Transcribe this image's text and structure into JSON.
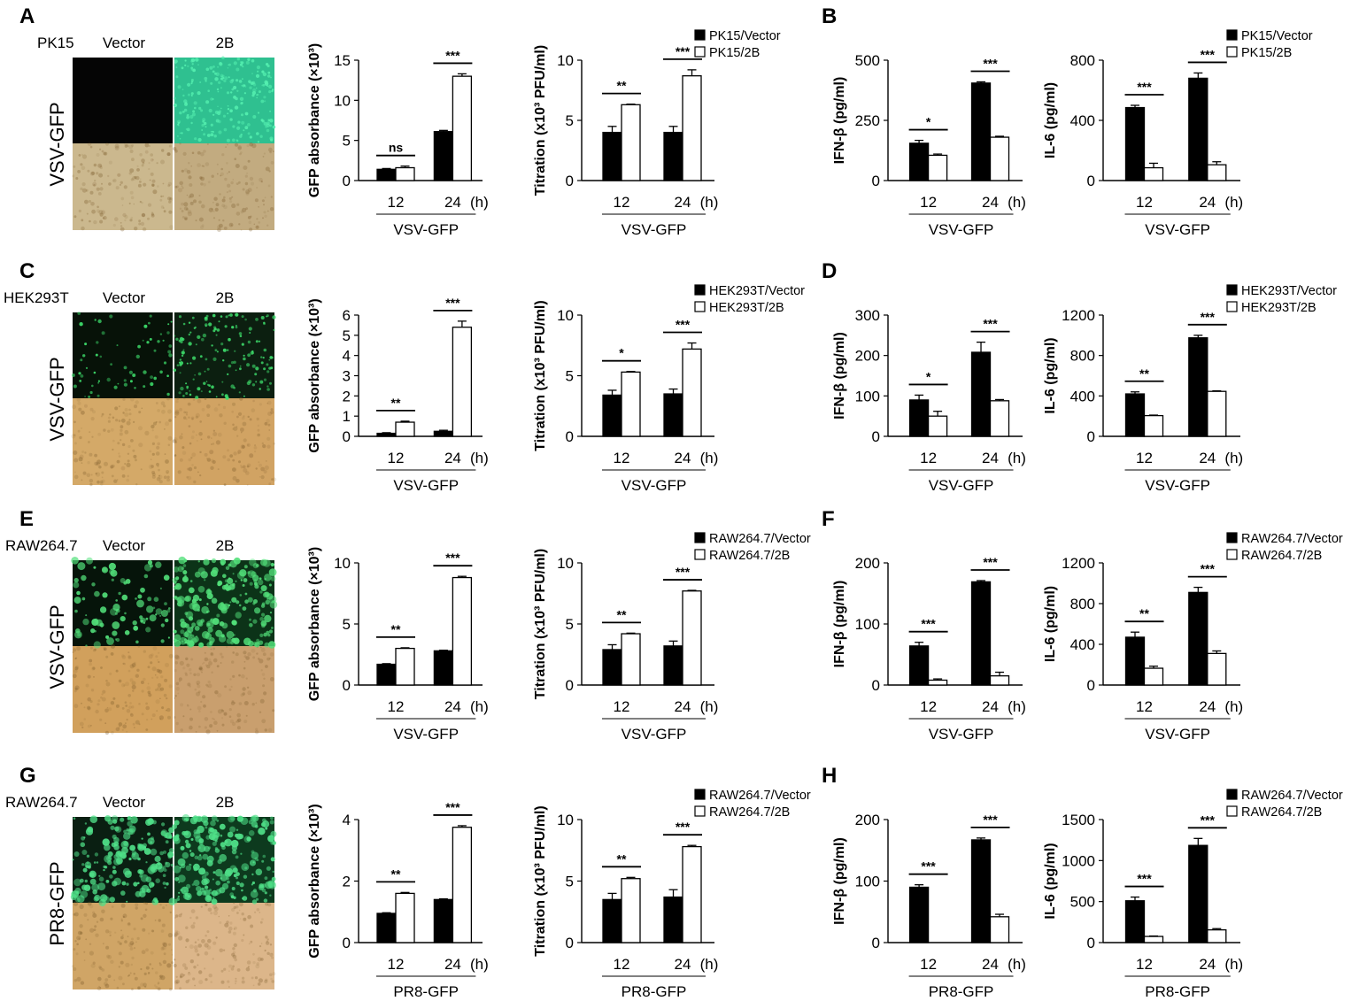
{
  "panel_labels": [
    "A",
    "B",
    "C",
    "D",
    "E",
    "F",
    "G",
    "H"
  ],
  "rows": [
    {
      "cell_line": "PK15",
      "condition_labels": [
        "Vector",
        "2B"
      ],
      "side_label": "VSV-GFP",
      "micro": {
        "top_left": "#050505",
        "top_right": "#2fc090",
        "bottom_left": "#cbb88e",
        "bottom_right": "#c2ab80",
        "spot_color": "#55f0b0",
        "spot_density_left": 0.0,
        "spot_density_right": 0.9
      }
    },
    {
      "cell_line": "HEK293T",
      "condition_labels": [
        "Vector",
        "2B"
      ],
      "side_label": "VSV-GFP",
      "micro": {
        "top_left": "#071208",
        "top_right": "#0c1f10",
        "bottom_left": "#d4a968",
        "bottom_right": "#d1a363",
        "spot_color": "#3ddc6a",
        "spot_density_left": 0.25,
        "spot_density_right": 0.6
      }
    },
    {
      "cell_line": "RAW264.7",
      "condition_labels": [
        "Vector",
        "2B"
      ],
      "side_label": "VSV-GFP",
      "micro": {
        "top_left": "#06140a",
        "top_right": "#0c3318",
        "bottom_left": "#d1a05c",
        "bottom_right": "#c99f6e",
        "spot_color": "#52e07a",
        "spot_density_left": 0.35,
        "spot_density_right": 0.85
      }
    },
    {
      "cell_line": "RAW264.7",
      "condition_labels": [
        "Vector",
        "2B"
      ],
      "side_label": "PR8-GFP",
      "micro": {
        "top_left": "#0a1f12",
        "top_right": "#0d3a1e",
        "bottom_left": "#d0a566",
        "bottom_right": "#dcb68a",
        "spot_color": "#4fe088",
        "spot_density_left": 0.7,
        "spot_density_right": 0.8
      }
    }
  ],
  "chart_data": [
    {
      "id": "A-gfp",
      "type": "bar",
      "ylabel": "GFP absorbance (×10³)",
      "ylim": [
        0,
        15
      ],
      "yticks": [
        0,
        5,
        10,
        15
      ],
      "categories": [
        "12",
        "24"
      ],
      "unit": "(h)",
      "group_label": "VSV-GFP",
      "series": [
        {
          "name": "Vector",
          "fill": "black",
          "values": [
            1.4,
            6.1
          ],
          "errors": [
            0.1,
            0.15
          ]
        },
        {
          "name": "2B",
          "fill": "white",
          "values": [
            1.6,
            13.0
          ],
          "errors": [
            0.2,
            0.3
          ]
        }
      ],
      "significance": [
        "ns",
        "***"
      ]
    },
    {
      "id": "A-titer",
      "type": "bar",
      "ylabel": "Titration (x10³ PFU/ml)",
      "ylim": [
        0,
        10
      ],
      "yticks": [
        0,
        5,
        10
      ],
      "categories": [
        "12",
        "24"
      ],
      "unit": "(h)",
      "group_label": "VSV-GFP",
      "series": [
        {
          "name": "PK15/Vector",
          "fill": "black",
          "values": [
            4.0,
            4.0
          ],
          "errors": [
            0.5,
            0.5
          ]
        },
        {
          "name": "PK15/2B",
          "fill": "white",
          "values": [
            6.3,
            8.7
          ],
          "errors": [
            0.05,
            0.5
          ]
        }
      ],
      "significance": [
        "**",
        "***"
      ],
      "legend": [
        "PK15/Vector",
        "PK15/2B"
      ]
    },
    {
      "id": "B-ifn",
      "type": "bar",
      "ylabel": "IFN-β (pg/ml)",
      "ylim": [
        0,
        500
      ],
      "yticks": [
        0,
        250,
        500
      ],
      "categories": [
        "12",
        "24"
      ],
      "unit": "(h)",
      "group_label": "VSV-GFP",
      "series": [
        {
          "name": "PK15/Vector",
          "fill": "black",
          "values": [
            155,
            405
          ],
          "errors": [
            12,
            5
          ]
        },
        {
          "name": "PK15/2B",
          "fill": "white",
          "values": [
            105,
            180
          ],
          "errors": [
            5,
            4
          ]
        }
      ],
      "significance": [
        "*",
        "***"
      ]
    },
    {
      "id": "B-il6",
      "type": "bar",
      "ylabel": "IL-6 (pg/ml)",
      "ylim": [
        0,
        800
      ],
      "yticks": [
        0,
        400,
        800
      ],
      "categories": [
        "12",
        "24"
      ],
      "unit": "(h)",
      "group_label": "VSV-GFP",
      "series": [
        {
          "name": "PK15/Vector",
          "fill": "black",
          "values": [
            485,
            680
          ],
          "errors": [
            15,
            35
          ]
        },
        {
          "name": "PK15/2B",
          "fill": "white",
          "values": [
            85,
            105
          ],
          "errors": [
            30,
            20
          ]
        }
      ],
      "significance": [
        "***",
        "***"
      ],
      "legend": [
        "PK15/Vector",
        "PK15/2B"
      ]
    },
    {
      "id": "C-gfp",
      "type": "bar",
      "ylabel": "GFP absorbance (×10³)",
      "ylim": [
        0,
        6
      ],
      "yticks": [
        0,
        1,
        2,
        3,
        4,
        5,
        6
      ],
      "categories": [
        "12",
        "24"
      ],
      "unit": "(h)",
      "group_label": "VSV-GFP",
      "series": [
        {
          "name": "Vector",
          "fill": "black",
          "values": [
            0.15,
            0.25
          ],
          "errors": [
            0.03,
            0.05
          ]
        },
        {
          "name": "2B",
          "fill": "white",
          "values": [
            0.7,
            5.4
          ],
          "errors": [
            0.05,
            0.3
          ]
        }
      ],
      "significance": [
        "**",
        "***"
      ]
    },
    {
      "id": "C-titer",
      "type": "bar",
      "ylabel": "Titration (x10³ PFU/ml)",
      "ylim": [
        0,
        10
      ],
      "yticks": [
        0,
        5,
        10
      ],
      "categories": [
        "12",
        "24"
      ],
      "unit": "(h)",
      "group_label": "VSV-GFP",
      "series": [
        {
          "name": "HEK293T/Vector",
          "fill": "black",
          "values": [
            3.4,
            3.5
          ],
          "errors": [
            0.4,
            0.4
          ]
        },
        {
          "name": "HEK293T/2B",
          "fill": "white",
          "values": [
            5.3,
            7.2
          ],
          "errors": [
            0.05,
            0.5
          ]
        }
      ],
      "significance": [
        "*",
        "***"
      ],
      "legend": [
        "HEK293T/Vector",
        "HEK293T/2B"
      ]
    },
    {
      "id": "D-ifn",
      "type": "bar",
      "ylabel": "IFN-β (pg/ml)",
      "ylim": [
        0,
        300
      ],
      "yticks": [
        0,
        100,
        200,
        300
      ],
      "categories": [
        "12",
        "24"
      ],
      "unit": "(h)",
      "group_label": "VSV-GFP",
      "series": [
        {
          "name": "HEK293T/Vector",
          "fill": "black",
          "values": [
            90,
            208
          ],
          "errors": [
            12,
            25
          ]
        },
        {
          "name": "HEK293T/2B",
          "fill": "white",
          "values": [
            50,
            88
          ],
          "errors": [
            12,
            3
          ]
        }
      ],
      "significance": [
        "*",
        "***"
      ]
    },
    {
      "id": "D-il6",
      "type": "bar",
      "ylabel": "IL-6 (pg/ml)",
      "ylim": [
        0,
        1200
      ],
      "yticks": [
        0,
        400,
        800,
        1200
      ],
      "categories": [
        "12",
        "24"
      ],
      "unit": "(h)",
      "group_label": "VSV-GFP",
      "series": [
        {
          "name": "HEK293T/Vector",
          "fill": "black",
          "values": [
            420,
            975
          ],
          "errors": [
            20,
            25
          ]
        },
        {
          "name": "HEK293T/2B",
          "fill": "white",
          "values": [
            205,
            445
          ],
          "errors": [
            5,
            5
          ]
        }
      ],
      "significance": [
        "**",
        "***"
      ],
      "legend": [
        "HEK293T/Vector",
        "HEK293T/2B"
      ]
    },
    {
      "id": "E-gfp",
      "type": "bar",
      "ylabel": "GFP absorbance (×10³)",
      "ylim": [
        0,
        10
      ],
      "yticks": [
        0,
        5,
        10
      ],
      "categories": [
        "12",
        "24"
      ],
      "unit": "(h)",
      "group_label": "VSV-GFP",
      "series": [
        {
          "name": "Vector",
          "fill": "black",
          "values": [
            1.7,
            2.8
          ],
          "errors": [
            0.05,
            0.05
          ]
        },
        {
          "name": "2B",
          "fill": "white",
          "values": [
            3.0,
            8.8
          ],
          "errors": [
            0.05,
            0.1
          ]
        }
      ],
      "significance": [
        "**",
        "***"
      ]
    },
    {
      "id": "E-titer",
      "type": "bar",
      "ylabel": "Titration (x10³ PFU/ml)",
      "ylim": [
        0,
        10
      ],
      "yticks": [
        0,
        5,
        10
      ],
      "categories": [
        "12",
        "24"
      ],
      "unit": "(h)",
      "group_label": "VSV-GFP",
      "series": [
        {
          "name": "RAW264.7/Vector",
          "fill": "black",
          "values": [
            2.9,
            3.2
          ],
          "errors": [
            0.4,
            0.4
          ]
        },
        {
          "name": "RAW264.7/2B",
          "fill": "white",
          "values": [
            4.2,
            7.7
          ],
          "errors": [
            0.05,
            0.05
          ]
        }
      ],
      "significance": [
        "**",
        "***"
      ],
      "legend": [
        "RAW264.7/Vector",
        "RAW264.7/2B"
      ]
    },
    {
      "id": "F-ifn",
      "type": "bar",
      "ylabel": "IFN-β (pg/ml)",
      "ylim": [
        0,
        200
      ],
      "yticks": [
        0,
        100,
        200
      ],
      "categories": [
        "12",
        "24"
      ],
      "unit": "(h)",
      "group_label": "VSV-GFP",
      "series": [
        {
          "name": "RAW264.7/Vector",
          "fill": "black",
          "values": [
            64,
            169
          ],
          "errors": [
            6,
            2
          ]
        },
        {
          "name": "RAW264.7/2B",
          "fill": "white",
          "values": [
            8,
            15
          ],
          "errors": [
            2,
            6
          ]
        }
      ],
      "significance": [
        "***",
        "***"
      ]
    },
    {
      "id": "F-il6",
      "type": "bar",
      "ylabel": "IL-6 (pg/ml)",
      "ylim": [
        0,
        1200
      ],
      "yticks": [
        0,
        400,
        800,
        1200
      ],
      "categories": [
        "12",
        "24"
      ],
      "unit": "(h)",
      "group_label": "VSV-GFP",
      "series": [
        {
          "name": "RAW264.7/Vector",
          "fill": "black",
          "values": [
            470,
            910
          ],
          "errors": [
            50,
            50
          ]
        },
        {
          "name": "RAW264.7/2B",
          "fill": "white",
          "values": [
            165,
            310
          ],
          "errors": [
            20,
            25
          ]
        }
      ],
      "significance": [
        "**",
        "***"
      ],
      "legend": [
        "RAW264.7/Vector",
        "RAW264.7/2B"
      ]
    },
    {
      "id": "G-gfp",
      "type": "bar",
      "ylabel": "GFP absorbance (×10³)",
      "ylim": [
        0,
        4
      ],
      "yticks": [
        0,
        2,
        4
      ],
      "categories": [
        "12",
        "24"
      ],
      "unit": "(h)",
      "group_label": "PR8-GFP",
      "series": [
        {
          "name": "Vector",
          "fill": "black",
          "values": [
            0.95,
            1.4
          ],
          "errors": [
            0.02,
            0.02
          ]
        },
        {
          "name": "2B",
          "fill": "white",
          "values": [
            1.6,
            3.75
          ],
          "errors": [
            0.03,
            0.05
          ]
        }
      ],
      "significance": [
        "**",
        "***"
      ]
    },
    {
      "id": "G-titer",
      "type": "bar",
      "ylabel": "Titration (x10³ PFU/ml)",
      "ylim": [
        0,
        10
      ],
      "yticks": [
        0,
        5,
        10
      ],
      "categories": [
        "12",
        "24"
      ],
      "unit": "(h)",
      "group_label": "PR8-GFP",
      "series": [
        {
          "name": "RAW264.7/Vector",
          "fill": "black",
          "values": [
            3.5,
            3.7
          ],
          "errors": [
            0.5,
            0.6
          ]
        },
        {
          "name": "RAW264.7/2B",
          "fill": "white",
          "values": [
            5.2,
            7.8
          ],
          "errors": [
            0.1,
            0.1
          ]
        }
      ],
      "significance": [
        "**",
        "***"
      ],
      "legend": [
        "RAW264.7/Vector",
        "RAW264.7/2B"
      ]
    },
    {
      "id": "H-ifn",
      "type": "bar",
      "ylabel": "IFN-β (pg/ml)",
      "ylim": [
        0,
        200
      ],
      "yticks": [
        0,
        100,
        200
      ],
      "categories": [
        "12",
        "24"
      ],
      "unit": "(h)",
      "group_label": "PR8-GFP",
      "series": [
        {
          "name": "RAW264.7/Vector",
          "fill": "black",
          "values": [
            90,
            167
          ],
          "errors": [
            4,
            3
          ]
        },
        {
          "name": "RAW264.7/2B",
          "fill": "white",
          "values": [
            0,
            42
          ],
          "errors": [
            0,
            4
          ]
        }
      ],
      "significance": [
        "***",
        "***"
      ]
    },
    {
      "id": "H-il6",
      "type": "bar",
      "ylabel": "IL-6 (pg/ml)",
      "ylim": [
        0,
        1500
      ],
      "yticks": [
        0,
        500,
        1000,
        1500
      ],
      "categories": [
        "12",
        "24"
      ],
      "unit": "(h)",
      "group_label": "PR8-GFP",
      "series": [
        {
          "name": "RAW264.7/Vector",
          "fill": "black",
          "values": [
            510,
            1185
          ],
          "errors": [
            45,
            85
          ]
        },
        {
          "name": "RAW264.7/2B",
          "fill": "white",
          "values": [
            75,
            155
          ],
          "errors": [
            5,
            15
          ]
        }
      ],
      "significance": [
        "***",
        "***"
      ],
      "legend": [
        "RAW264.7/Vector",
        "RAW264.7/2B"
      ]
    }
  ]
}
